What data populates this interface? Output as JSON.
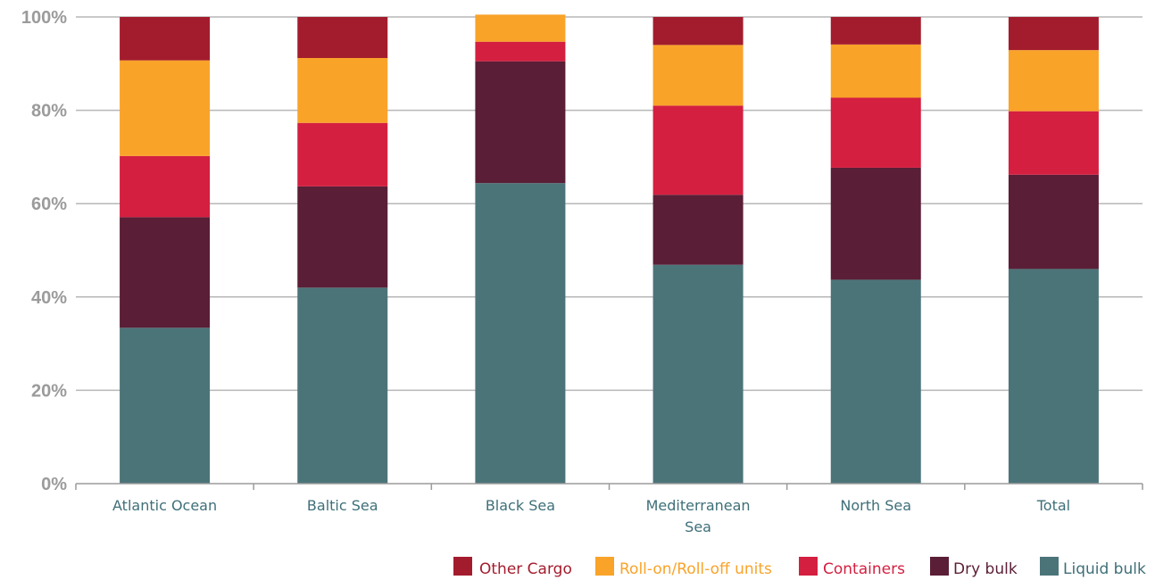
{
  "chart_data": {
    "type": "bar",
    "stacked": true,
    "percent": true,
    "categories": [
      "Atlantic Ocean",
      "Baltic Sea",
      "Black Sea",
      "Mediterranean Sea",
      "North Sea",
      "Total"
    ],
    "category_lines": [
      [
        "Atlantic Ocean"
      ],
      [
        "Baltic Sea"
      ],
      [
        "Black Sea"
      ],
      [
        "Mediterranean",
        "Sea"
      ],
      [
        "North Sea"
      ],
      [
        "Total"
      ]
    ],
    "yticks": [
      "0%",
      "20%",
      "40%",
      "60%",
      "80%",
      "100%"
    ],
    "ylim": [
      0,
      100
    ],
    "grid": true,
    "legend_position": "bottom-right",
    "series": [
      {
        "name": "Liquid bulk",
        "color": "#4b7479",
        "values": [
          33.4,
          42.0,
          64.4,
          46.9,
          43.7,
          46.0
        ]
      },
      {
        "name": "Dry bulk",
        "color": "#5a1e36",
        "values": [
          23.7,
          21.7,
          26.1,
          15.0,
          24.0,
          20.2
        ]
      },
      {
        "name": "Containers",
        "color": "#d41f40",
        "values": [
          13.1,
          13.6,
          4.2,
          19.1,
          15.0,
          13.6
        ]
      },
      {
        "name": "Roll-on/Roll-off units",
        "color": "#f9a329",
        "values": [
          20.5,
          13.9,
          5.8,
          13.0,
          11.4,
          13.1
        ]
      },
      {
        "name": "Other Cargo",
        "color": "#a31c2d",
        "values": [
          9.3,
          8.8,
          0.0,
          6.0,
          5.9,
          7.1
        ]
      }
    ],
    "legend_order": [
      "Other Cargo",
      "Roll-on/Roll-off units",
      "Containers",
      "Dry bulk",
      "Liquid bulk"
    ],
    "legend_text_colors": {
      "Other Cargo": "#a31c2d",
      "Roll-on/Roll-off units": "#f9a329",
      "Containers": "#d41f40",
      "Dry bulk": "#5a1e36",
      "Liquid bulk": "#3e6f78"
    },
    "colors": {
      "grid": "#b7b7b7",
      "axis": "#9b9b9b",
      "tick_text": "#9b9b9b",
      "category_text": "#3e6f78"
    }
  }
}
